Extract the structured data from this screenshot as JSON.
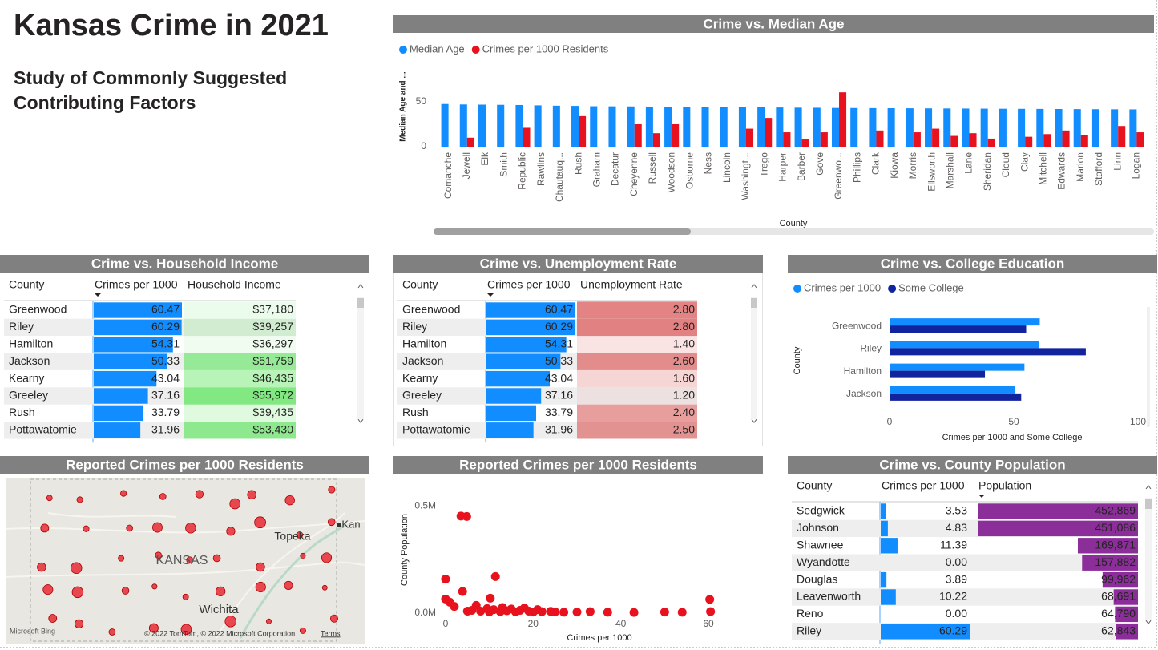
{
  "header": {
    "title": "Kansas Crime in 2021",
    "subtitle_lines": [
      "Study of Commonly Suggested",
      "Contributing Factors"
    ]
  },
  "chart_data": [
    {
      "type": "bar",
      "title": "Crime vs. Median Age",
      "y_label": "Median Age and ...",
      "x_label": "County",
      "categories": [
        "Comanche",
        "Jewell",
        "Elk",
        "Smith",
        "Republic",
        "Rawlins",
        "Chautauq...",
        "Rush",
        "Graham",
        "Decatur",
        "Cheyenne",
        "Russell",
        "Woodson",
        "Osborne",
        "Ness",
        "Lincoln",
        "Washingt...",
        "Trego",
        "Harper",
        "Barber",
        "Gove",
        "Greenwo...",
        "Phillips",
        "Clark",
        "Kiowa",
        "Morris",
        "Ellsworth",
        "Marshall",
        "Lane",
        "Sheridan",
        "Cloud",
        "Clay",
        "Mitchell",
        "Edwards",
        "Marion",
        "Stafford",
        "Linn",
        "Logan"
      ],
      "series": [
        {
          "name": "Median Age",
          "color": "#118dff",
          "values": [
            47.5,
            47,
            46.8,
            46.6,
            46.4,
            46,
            45.6,
            45.4,
            45,
            44.9,
            44.8,
            44.6,
            44.5,
            44.4,
            44.2,
            44,
            44,
            43.8,
            43.6,
            43.4,
            43.3,
            43.1,
            43,
            42.9,
            42.8,
            42.7,
            42.6,
            42.5,
            42.4,
            42.3,
            42.2,
            42.1,
            42,
            41.9,
            41.8,
            41.7,
            41.6,
            41.5
          ]
        },
        {
          "name": "Crimes per 1000 Residents",
          "color": "#e8121f",
          "values": [
            null,
            10,
            null,
            null,
            21,
            null,
            null,
            34,
            null,
            null,
            25,
            15,
            25,
            null,
            null,
            null,
            20,
            32,
            16,
            8,
            16,
            60.47,
            null,
            18,
            null,
            16,
            20,
            12,
            15,
            9,
            null,
            11,
            14,
            18,
            13,
            null,
            23,
            16
          ]
        }
      ],
      "ylim": [
        0,
        74
      ],
      "yticks": [
        0,
        50
      ]
    },
    {
      "type": "barh",
      "title": "Crime vs. College Education",
      "x_label": "Crimes per 1000 and Some College",
      "y_label": "County",
      "categories": [
        "Greenwood",
        "Riley",
        "Hamilton",
        "Jackson"
      ],
      "series": [
        {
          "name": "Crimes per 1000",
          "color": "#118dff",
          "values": [
            60.47,
            60.29,
            54.31,
            50.33
          ]
        },
        {
          "name": "Some College",
          "color": "#12239e",
          "values": [
            55,
            79,
            38.4,
            53
          ]
        }
      ],
      "xlim": [
        0,
        100
      ],
      "xticks": [
        0,
        50,
        100
      ]
    },
    {
      "type": "scatter",
      "title": "Reported Crimes per 1000 Residents",
      "x_label": "Crimes per 1000",
      "y_label": "County Population",
      "color": "#e8121f",
      "x": [
        3.53,
        4.83,
        11.39,
        0,
        3.89,
        10.22,
        0,
        60.29,
        60.47,
        2,
        6,
        8,
        9.5,
        11,
        12.5,
        13,
        14,
        15,
        16,
        17,
        18,
        19,
        20,
        21,
        22,
        24,
        25,
        27,
        30,
        33,
        37,
        43,
        50,
        54,
        1,
        5,
        7,
        10
      ],
      "values": [
        452869,
        451086,
        169871,
        157882,
        99962,
        68691,
        64790,
        62843,
        6000,
        30000,
        12000,
        8000,
        20000,
        15000,
        6000,
        25000,
        10000,
        18000,
        5000,
        12000,
        22000,
        8000,
        4000,
        15000,
        6000,
        7000,
        5000,
        3000,
        4000,
        6000,
        3000,
        2000,
        4000,
        3000,
        50000,
        8000,
        35000,
        5000
      ],
      "xlim": [
        -2,
        62
      ],
      "xticks": [
        0,
        20,
        40,
        60
      ],
      "ylim": [
        -20000,
        580000
      ],
      "yticks": [
        {
          "value": 0,
          "label": "0.0M"
        },
        {
          "value": 500000,
          "label": "0.5M"
        }
      ]
    }
  ],
  "map": {
    "title": "Reported Crimes per 1000 Residents",
    "labels": [
      "KANSAS",
      "Topeka",
      "Wichita",
      "Kan"
    ],
    "logo": "Microsoft Bing",
    "attribution": "© 2022 TomTom, © 2022 Microsoft Corporation",
    "terms": "Terms"
  },
  "tables": [
    {
      "title": "Crime vs. Household Income",
      "category_header": "County",
      "categories": [
        "Greenwood",
        "Riley",
        "Hamilton",
        "Jackson",
        "Kearny",
        "Greeley",
        "Rush",
        "Pottawatomie"
      ],
      "series": [
        {
          "name": "Crimes per 1000",
          "format": "bar",
          "color": "#118dff",
          "values": [
            60.47,
            60.29,
            54.31,
            50.33,
            43.04,
            37.16,
            33.79,
            31.96
          ]
        },
        {
          "name": "Household Income",
          "format": "background",
          "color": "#6ee66e",
          "values": [
            37180,
            39257,
            36297,
            51759,
            46435,
            55972,
            39435,
            53430
          ],
          "value_labels": [
            "$37,180",
            "$39,257",
            "$36,297",
            "$51,759",
            "$46,435",
            "$55,972",
            "$39,435",
            "$53,430"
          ]
        }
      ]
    },
    {
      "title": "Crime vs. Unemployment Rate",
      "category_header": "County",
      "categories": [
        "Greenwood",
        "Riley",
        "Hamilton",
        "Jackson",
        "Kearny",
        "Greeley",
        "Rush",
        "Pottawatomie"
      ],
      "series": [
        {
          "name": "Crimes per 1000",
          "format": "bar",
          "color": "#118dff",
          "values": [
            60.47,
            60.29,
            54.31,
            50.33,
            43.04,
            37.16,
            33.79,
            31.96
          ]
        },
        {
          "name": "Unemployment Rate",
          "format": "background",
          "color": "#de6d6d",
          "values": [
            2.8,
            2.8,
            1.4,
            2.6,
            1.6,
            1.2,
            2.4,
            2.5
          ],
          "value_labels": [
            "2.80",
            "2.80",
            "1.40",
            "2.60",
            "1.60",
            "1.20",
            "2.40",
            "2.50"
          ]
        }
      ]
    },
    {
      "title": "Crime vs. County Population",
      "category_header": "County",
      "categories": [
        "Sedgwick",
        "Johnson",
        "Shawnee",
        "Wyandotte",
        "Douglas",
        "Leavenworth",
        "Reno",
        "Riley"
      ],
      "series": [
        {
          "name": "Crimes per 1000",
          "format": "bar",
          "color": "#118dff",
          "values": [
            3.53,
            4.83,
            11.39,
            0,
            3.89,
            10.22,
            0,
            60.29
          ],
          "value_labels": [
            "3.53",
            "4.83",
            "11.39",
            "0.00",
            "3.89",
            "10.22",
            "0.00",
            "60.29"
          ]
        },
        {
          "name": "Population",
          "format": "bar-right",
          "color": "#8b2e9a",
          "values": [
            452869,
            451086,
            169871,
            157882,
            99962,
            68691,
            64790,
            62843
          ],
          "value_labels": [
            "452,869",
            "451,086",
            "169,871",
            "157,882",
            "99,962",
            "68,691",
            "64,790",
            "62,843"
          ]
        }
      ]
    }
  ]
}
